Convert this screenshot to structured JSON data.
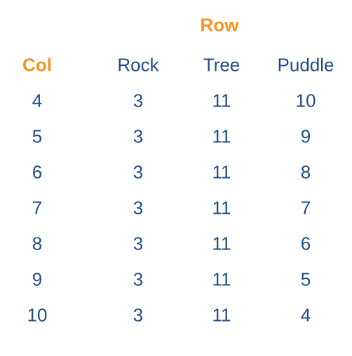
{
  "colors": {
    "accent": "#f7941d",
    "text": "#1f4e87"
  },
  "table": {
    "row_title": "Row",
    "col_title": "Col",
    "headers": [
      "Rock",
      "Tree",
      "Puddle"
    ],
    "rows": [
      {
        "col": "4",
        "values": [
          "3",
          "11",
          "10"
        ]
      },
      {
        "col": "5",
        "values": [
          "3",
          "11",
          "9"
        ]
      },
      {
        "col": "6",
        "values": [
          "3",
          "11",
          "8"
        ]
      },
      {
        "col": "7",
        "values": [
          "3",
          "11",
          "7"
        ]
      },
      {
        "col": "8",
        "values": [
          "3",
          "11",
          "6"
        ]
      },
      {
        "col": "9",
        "values": [
          "3",
          "11",
          "5"
        ]
      },
      {
        "col": "10",
        "values": [
          "3",
          "11",
          "4"
        ]
      }
    ]
  }
}
